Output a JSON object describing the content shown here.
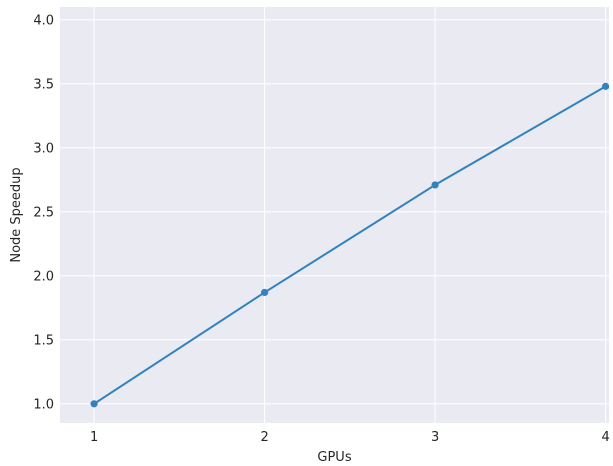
{
  "chart_data": {
    "type": "line",
    "title": "",
    "xlabel": "GPUs",
    "ylabel": "Node Speedup",
    "x": [
      1,
      2,
      3,
      4
    ],
    "series": [
      {
        "values": [
          1.0,
          1.87,
          2.71,
          3.48
        ],
        "color": "#3182bd",
        "marker": "circle"
      }
    ],
    "xlim": [
      0.8,
      4.02
    ],
    "ylim": [
      0.85,
      4.1
    ],
    "xticks": [
      1,
      2,
      3,
      4
    ],
    "xtick_labels": [
      "1",
      "2",
      "3",
      "4"
    ],
    "yticks": [
      1.0,
      1.5,
      2.0,
      2.5,
      3.0,
      3.5,
      4.0
    ],
    "ytick_labels": [
      "1.0",
      "1.5",
      "2.0",
      "2.5",
      "3.0",
      "3.5",
      "4.0"
    ],
    "grid": true,
    "background_color": "#eaeaf2",
    "grid_color": "#ffffff",
    "legend": "none"
  }
}
